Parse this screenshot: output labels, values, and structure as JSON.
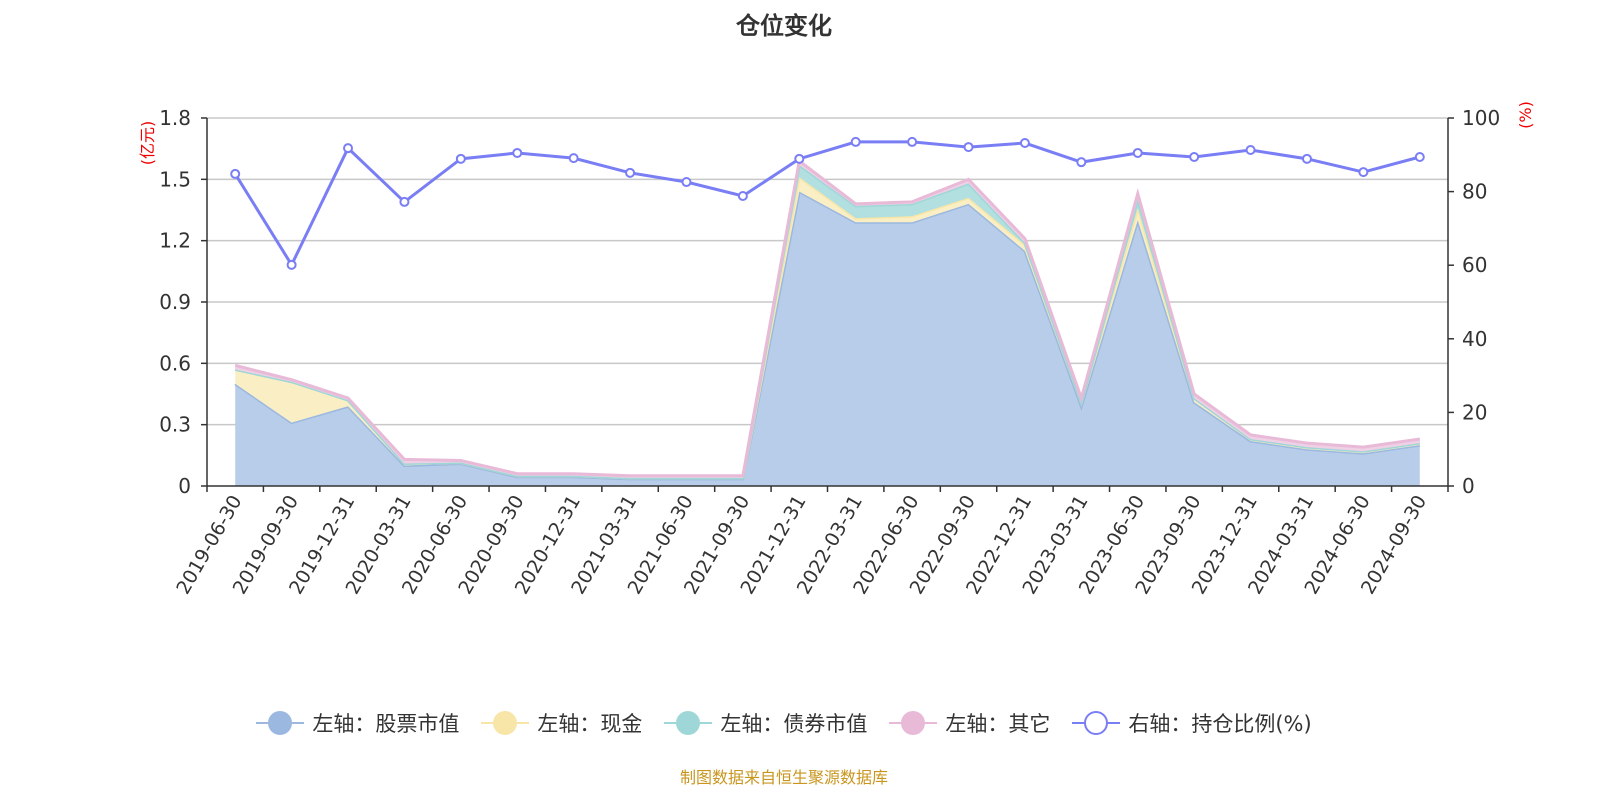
{
  "chart_data": {
    "type": "area",
    "title": "仓位变化",
    "left_axis_unit": "(亿元)",
    "right_axis_unit": "(%)",
    "left_ylim": [
      0,
      1.8
    ],
    "left_ticks": [
      "0",
      "0.3",
      "0.6",
      "0.9",
      "1.2",
      "1.5",
      "1.8"
    ],
    "right_ylim": [
      0,
      100
    ],
    "right_ticks": [
      "0",
      "20",
      "40",
      "60",
      "80",
      "100"
    ],
    "grid": true,
    "legend_position": "bottom",
    "categories": [
      "2019-06-30",
      "2019-09-30",
      "2019-12-31",
      "2020-03-31",
      "2020-06-30",
      "2020-09-30",
      "2020-12-31",
      "2021-03-31",
      "2021-06-30",
      "2021-09-30",
      "2021-12-31",
      "2022-03-31",
      "2022-06-30",
      "2022-09-30",
      "2022-12-31",
      "2023-03-31",
      "2023-06-30",
      "2023-09-30",
      "2023-12-31",
      "2024-03-31",
      "2024-06-30",
      "2024-09-30"
    ],
    "series": [
      {
        "name": "左轴：股票市值",
        "axis": "left",
        "stack": true,
        "color": "#9bb8e0",
        "fill": "#b8cde9",
        "values": [
          0.5,
          0.31,
          0.39,
          0.1,
          0.11,
          0.045,
          0.045,
          0.035,
          0.035,
          0.035,
          1.44,
          1.29,
          1.29,
          1.38,
          1.15,
          0.39,
          1.3,
          0.41,
          0.22,
          0.18,
          0.16,
          0.2
        ]
      },
      {
        "name": "左轴：现金",
        "axis": "left",
        "stack": true,
        "color": "#f8e6a8",
        "fill": "#faeec4",
        "values": [
          0.07,
          0.2,
          0.03,
          0.01,
          0.005,
          0.005,
          0.005,
          0.005,
          0.005,
          0.005,
          0.07,
          0.02,
          0.03,
          0.03,
          0.03,
          0.02,
          0.06,
          0.02,
          0.01,
          0.01,
          0.01,
          0.01
        ]
      },
      {
        "name": "左轴：债券市值",
        "axis": "left",
        "stack": true,
        "color": "#9fd7d8",
        "fill": "#b2dfe0",
        "values": [
          0,
          0,
          0,
          0,
          0,
          0,
          0,
          0,
          0,
          0,
          0.06,
          0.06,
          0.06,
          0.07,
          0.01,
          0,
          0.04,
          0,
          0,
          0,
          0,
          0
        ]
      },
      {
        "name": "左轴：其它",
        "axis": "left",
        "stack": true,
        "color": "#e8bad8",
        "fill": "#efd0e4",
        "values": [
          0.02,
          0.01,
          0.01,
          0.02,
          0.01,
          0.01,
          0.01,
          0.01,
          0.01,
          0.01,
          0.02,
          0.01,
          0.01,
          0.02,
          0.02,
          0.02,
          0.03,
          0.02,
          0.02,
          0.02,
          0.02,
          0.02
        ]
      },
      {
        "name": "右轴：持仓比例(%)",
        "axis": "right",
        "type": "line",
        "color": "#7a7ef5",
        "values": [
          84.8,
          60.1,
          91.8,
          77.2,
          88.9,
          90.5,
          89.1,
          85.1,
          82.6,
          78.8,
          88.9,
          93.5,
          93.5,
          92.1,
          93.2,
          88.0,
          90.5,
          89.4,
          91.3,
          88.9,
          85.3,
          89.4
        ]
      }
    ]
  },
  "source": "制图数据来自恒生聚源数据库"
}
